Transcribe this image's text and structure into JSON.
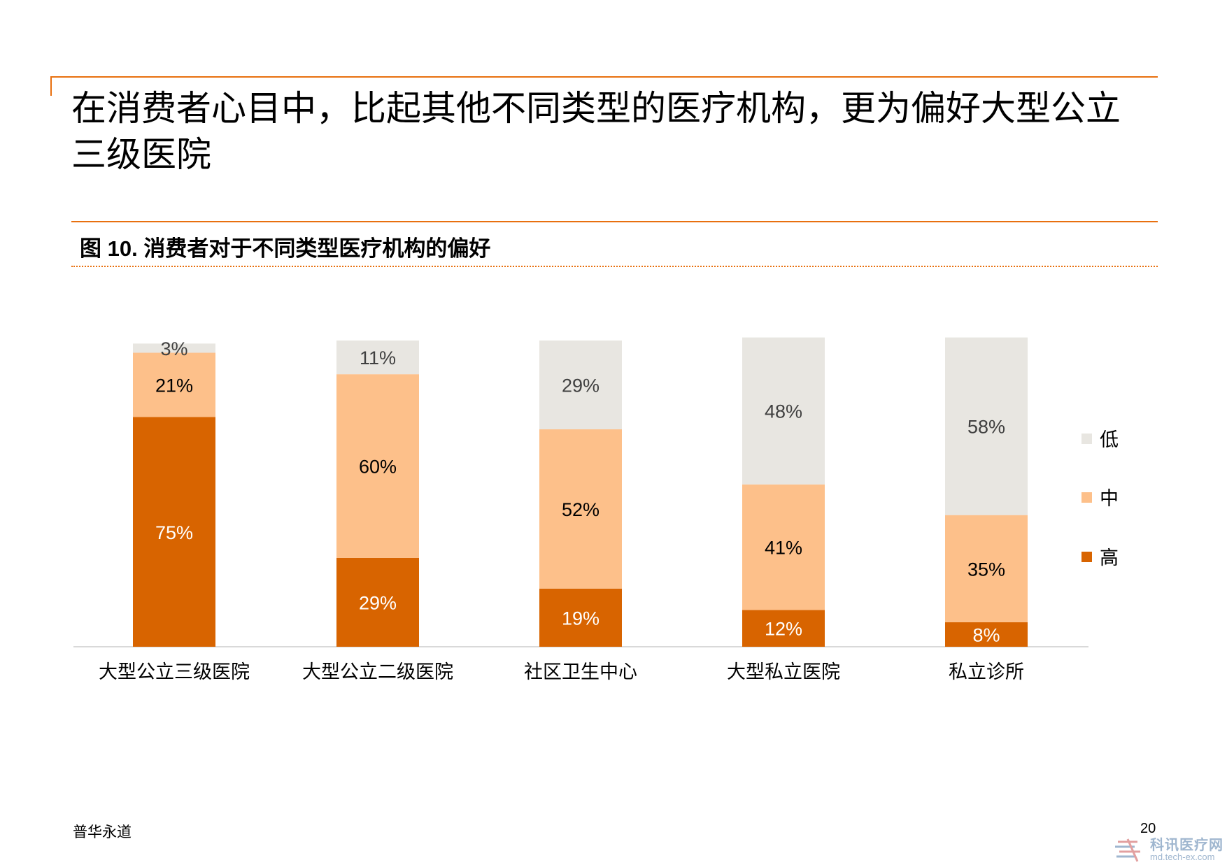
{
  "slide": {
    "title": "在消费者心目中，比起其他不同类型的医疗机构，更为偏好大型公立三级医院",
    "figure_title": "图 10. 消费者对于不同类型医疗机构的偏好",
    "footer_left": "普华永道",
    "page_number": "20"
  },
  "watermark": {
    "name": "科讯医疗网",
    "url": "md.tech-ex.com"
  },
  "colors": {
    "accent": "#e8700f",
    "high": "#d86400",
    "mid": "#fdc08a",
    "low": "#e8e6e1"
  },
  "chart_data": {
    "type": "bar",
    "stacked": true,
    "categories": [
      "大型公立三级医院",
      "大型公立二级医院",
      "社区卫生中心",
      "大型私立医院",
      "私立诊所"
    ],
    "series": [
      {
        "name": "高",
        "values": [
          75,
          29,
          19,
          12,
          8
        ],
        "labels": [
          "75%",
          "29%",
          "19%",
          "12%",
          "8%"
        ],
        "color": "#d86400",
        "label_color": "#ffffff"
      },
      {
        "name": "中",
        "values": [
          21,
          60,
          52,
          41,
          35
        ],
        "labels": [
          "21%",
          "60%",
          "52%",
          "41%",
          "35%"
        ],
        "color": "#fdc08a",
        "label_color": "#000000"
      },
      {
        "name": "低",
        "values": [
          3,
          11,
          29,
          48,
          58
        ],
        "labels": [
          "3%",
          "11%",
          "29%",
          "48%",
          "58%"
        ],
        "color": "#e8e6e1",
        "label_color": "#404040"
      }
    ],
    "legend": {
      "position": "right",
      "order": [
        "低",
        "中",
        "高"
      ]
    },
    "ylim": [
      0,
      100
    ],
    "grid": false
  }
}
